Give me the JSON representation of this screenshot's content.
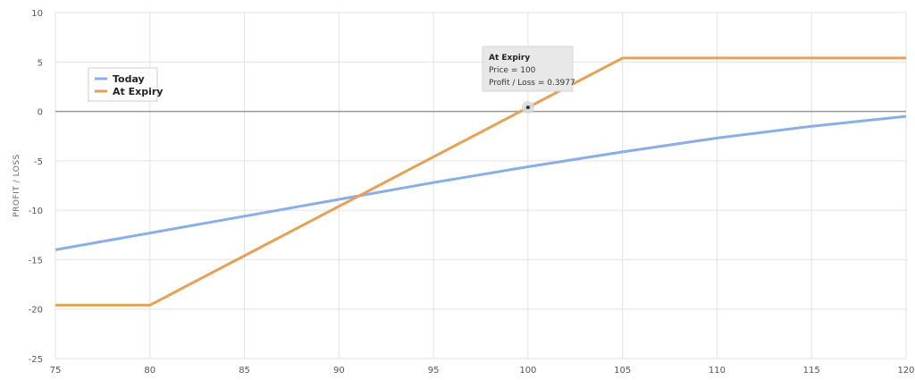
{
  "chart_data": {
    "type": "line",
    "ylabel": "PROFIT / LOSS",
    "xlim": [
      75,
      120
    ],
    "ylim": [
      -25,
      10
    ],
    "x_ticks": [
      75,
      80,
      85,
      90,
      95,
      100,
      105,
      110,
      115,
      120
    ],
    "y_ticks": [
      10,
      5,
      0,
      -5,
      -10,
      -15,
      -20,
      -25
    ],
    "grid": true,
    "legend_position": "top-left",
    "series": [
      {
        "name": "Today",
        "color": "#8aaee8",
        "points": [
          [
            75,
            -14.0
          ],
          [
            80,
            -12.3
          ],
          [
            85,
            -10.6
          ],
          [
            90,
            -8.9
          ],
          [
            95,
            -7.2
          ],
          [
            100,
            -5.6
          ],
          [
            105,
            -4.1
          ],
          [
            110,
            -2.7
          ],
          [
            115,
            -1.5
          ],
          [
            120,
            -0.5
          ]
        ]
      },
      {
        "name": "At Expiry",
        "color": "#e8a055",
        "points": [
          [
            75,
            -19.6
          ],
          [
            80,
            -19.6
          ],
          [
            105,
            5.4
          ],
          [
            120,
            5.4
          ]
        ]
      }
    ],
    "tooltip": {
      "title": "At Expiry",
      "line1": "Price = 100",
      "line2": "Profit / Loss = 0.3977",
      "point": [
        100,
        0.3977
      ]
    }
  }
}
